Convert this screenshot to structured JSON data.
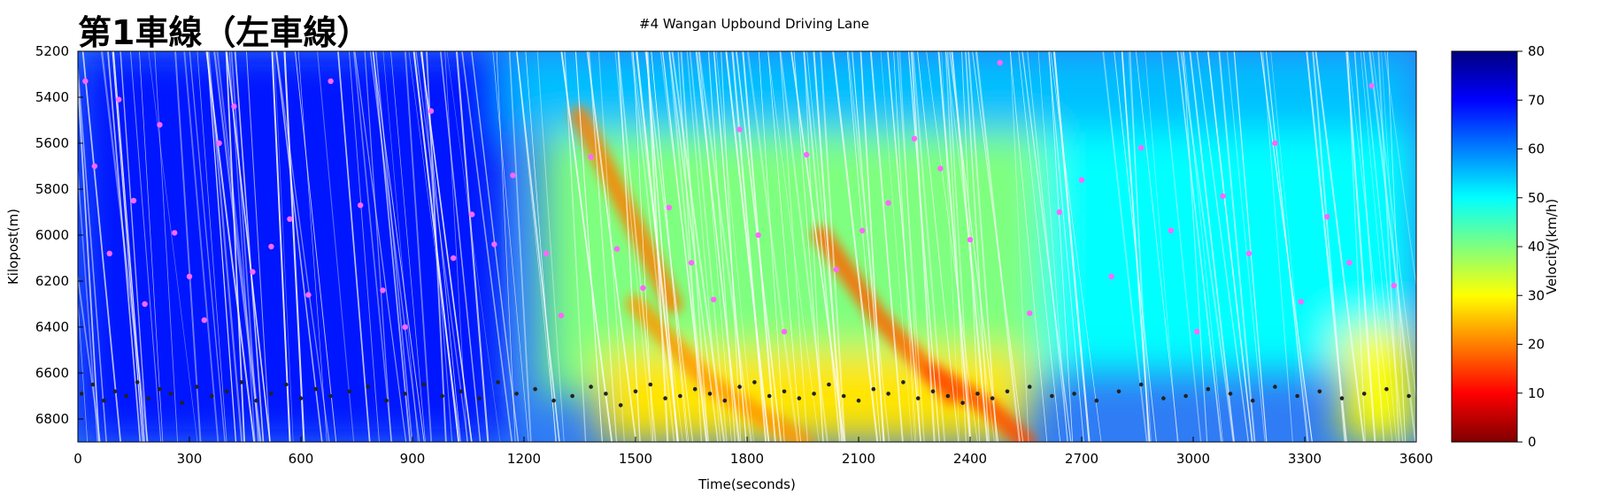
{
  "header": {
    "title": "第1車線（左車線）",
    "subtitle": "#4 Wangan Upbound Driving Lane"
  },
  "chart_data": {
    "type": "heatmap",
    "title": "#4 Wangan Upbound Driving Lane",
    "xlabel": "Time(seconds)",
    "ylabel": "Kilopost(m)",
    "colorbar_label": "Velocity(km/h)",
    "xlim": [
      0,
      3600
    ],
    "ylim": [
      6900,
      5200
    ],
    "x_ticks": [
      0,
      300,
      600,
      900,
      1200,
      1500,
      1800,
      2100,
      2400,
      2700,
      3000,
      3300,
      3600
    ],
    "y_ticks": [
      5200,
      5400,
      5600,
      5800,
      6000,
      6200,
      6400,
      6600,
      6800
    ],
    "colorbar_range": [
      0,
      80
    ],
    "colorbar_ticks": [
      0,
      10,
      20,
      30,
      40,
      50,
      60,
      70,
      80
    ],
    "colormap": [
      "#7f0000",
      "#ff0000",
      "#ff7f00",
      "#ffff00",
      "#7fff7f",
      "#00ffff",
      "#007fff",
      "#0000ff",
      "#00007f"
    ],
    "velocity_field_regions": [
      {
        "t_range": [
          0,
          1150
        ],
        "kp_range": [
          5200,
          6900
        ],
        "velocity": 68
      },
      {
        "t_range": [
          1150,
          3600
        ],
        "kp_range": [
          5200,
          5550
        ],
        "velocity": 55
      },
      {
        "t_range": [
          1250,
          2600
        ],
        "kp_range": [
          5550,
          6700
        ],
        "velocity": 40
      },
      {
        "t_range": [
          2600,
          3600
        ],
        "kp_range": [
          5550,
          6600
        ],
        "velocity": 50
      },
      {
        "t_range": [
          1400,
          2550
        ],
        "kp_range": [
          6500,
          6900
        ],
        "velocity": 28
      },
      {
        "t_range": [
          3400,
          3600
        ],
        "kp_range": [
          6400,
          6900
        ],
        "velocity": 30
      }
    ],
    "congestion_waves": [
      {
        "t": [
          1350,
          1480,
          1600
        ],
        "kp": [
          5480,
          5900,
          6300
        ],
        "velocity": 20
      },
      {
        "t": [
          1500,
          1700,
          1950
        ],
        "kp": [
          6300,
          6650,
          6900
        ],
        "velocity": 22
      },
      {
        "t": [
          2000,
          2150,
          2350
        ],
        "kp": [
          6000,
          6350,
          6700
        ],
        "velocity": 18
      },
      {
        "t": [
          2300,
          2450,
          2550
        ],
        "kp": [
          6600,
          6750,
          6900
        ],
        "velocity": 16
      }
    ],
    "magenta_points": {
      "color": "#ff66ff",
      "t": [
        20,
        45,
        85,
        110,
        150,
        180,
        220,
        260,
        300,
        340,
        380,
        420,
        470,
        520,
        570,
        620,
        680,
        760,
        820,
        880,
        950,
        1010,
        1060,
        1120,
        1170,
        1260,
        1300,
        1380,
        1450,
        1520,
        1590,
        1650,
        1710,
        1780,
        1830,
        1900,
        1960,
        2040,
        2110,
        2180,
        2250,
        2320,
        2400,
        2480,
        2560,
        2640,
        2700,
        2780,
        2860,
        2940,
        3010,
        3080,
        3150,
        3220,
        3290,
        3360,
        3420,
        3480,
        3540
      ],
      "kp": [
        5330,
        5700,
        6080,
        5410,
        5850,
        6300,
        5520,
        5990,
        6180,
        6370,
        5600,
        5440,
        6160,
        6050,
        5930,
        6260,
        5330,
        5870,
        6240,
        6400,
        5460,
        6100,
        5910,
        6040,
        5740,
        6080,
        6350,
        5660,
        6060,
        6230,
        5880,
        6120,
        6280,
        5540,
        6000,
        6420,
        5650,
        6150,
        5980,
        5860,
        5580,
        5710,
        6020,
        5250,
        6340,
        5900,
        5760,
        6180,
        5620,
        5980,
        6420,
        5830,
        6080,
        5600,
        6290,
        5920,
        6120,
        5350,
        6220
      ]
    },
    "black_points": {
      "color": "#222222",
      "kp_band": [
        6600,
        6780
      ],
      "t": [
        10,
        40,
        70,
        100,
        130,
        160,
        190,
        220,
        250,
        280,
        320,
        360,
        400,
        440,
        480,
        520,
        560,
        600,
        640,
        680,
        730,
        780,
        830,
        880,
        930,
        980,
        1030,
        1080,
        1130,
        1180,
        1230,
        1280,
        1330,
        1380,
        1420,
        1460,
        1500,
        1540,
        1580,
        1620,
        1660,
        1700,
        1740,
        1780,
        1820,
        1860,
        1900,
        1940,
        1980,
        2020,
        2060,
        2100,
        2140,
        2180,
        2220,
        2260,
        2300,
        2340,
        2380,
        2420,
        2460,
        2500,
        2560,
        2620,
        2680,
        2740,
        2800,
        2860,
        2920,
        2980,
        3040,
        3100,
        3160,
        3220,
        3280,
        3340,
        3400,
        3460,
        3520,
        3580
      ],
      "kp": [
        6690,
        6650,
        6720,
        6680,
        6700,
        6640,
        6710,
        6670,
        6690,
        6730,
        6660,
        6700,
        6680,
        6640,
        6720,
        6690,
        6650,
        6710,
        6670,
        6700,
        6680,
        6660,
        6720,
        6690,
        6650,
        6700,
        6680,
        6710,
        6640,
        6690,
        6670,
        6720,
        6700,
        6660,
        6690,
        6740,
        6680,
        6650,
        6710,
        6700,
        6670,
        6690,
        6720,
        6660,
        6640,
        6700,
        6680,
        6710,
        6690,
        6650,
        6700,
        6720,
        6670,
        6690,
        6640,
        6710,
        6680,
        6700,
        6730,
        6690,
        6710,
        6680,
        6660,
        6700,
        6690,
        6720,
        6680,
        6650,
        6710,
        6700,
        6670,
        6690,
        6720,
        6660,
        6700,
        6680,
        6710,
        6690,
        6670,
        6700
      ]
    }
  }
}
